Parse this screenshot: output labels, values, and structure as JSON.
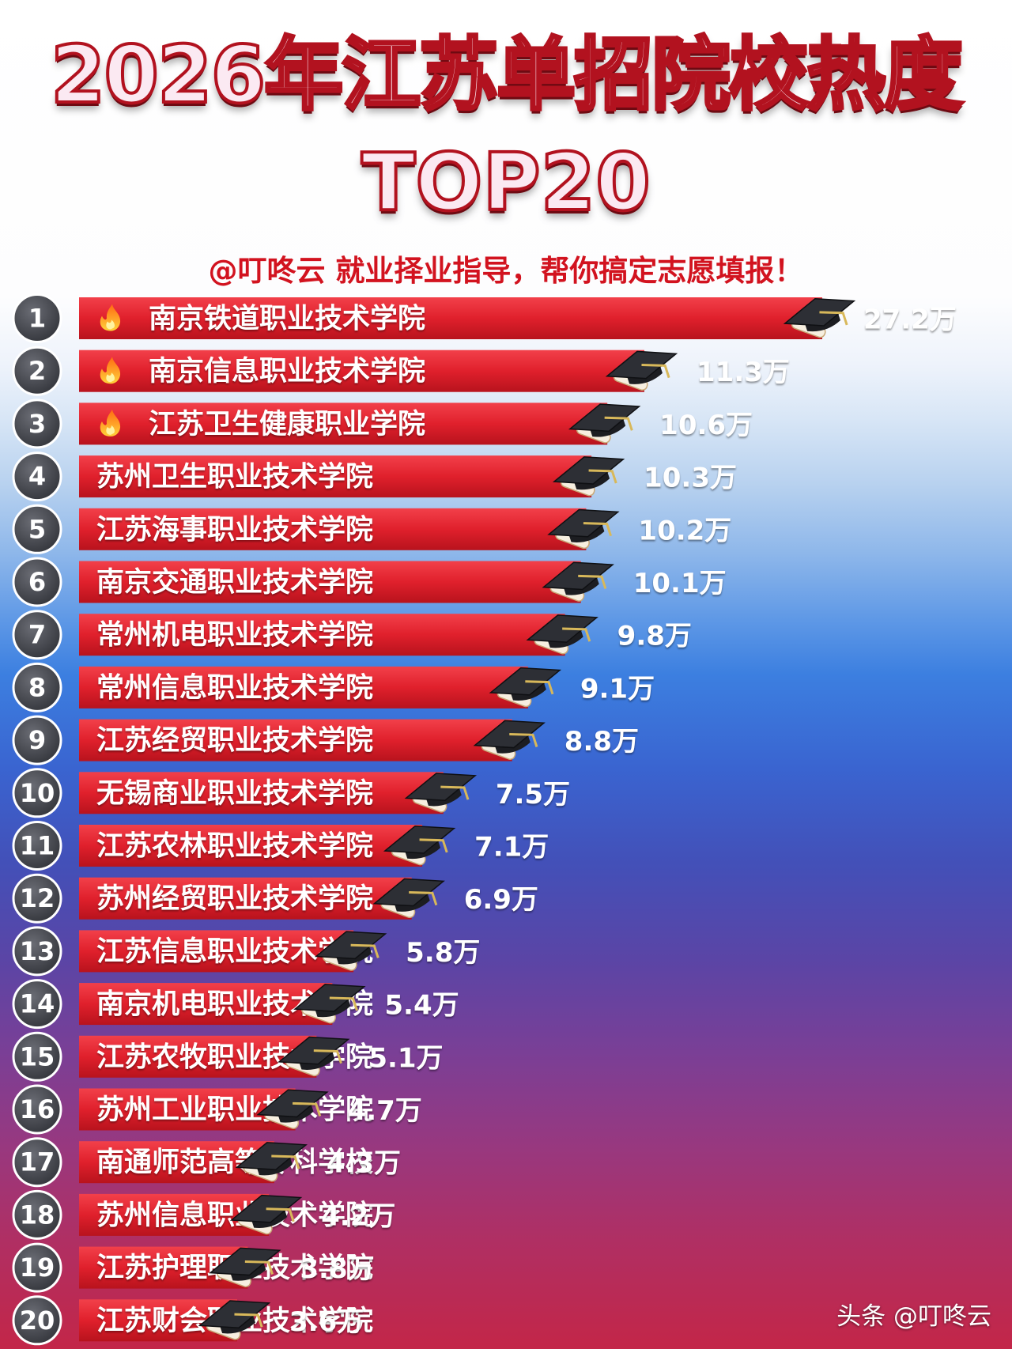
{
  "header": {
    "title": "2026年江苏单招院校热度",
    "subtitle": "TOP20",
    "tagline": "@叮咚云 就业择业指导，帮你搞定志愿填报！"
  },
  "watermark": "头条 @叮咚云",
  "colors": {
    "bar": "#e0202c",
    "rank_circle": "#4b4d55"
  },
  "icons": {
    "hot": "fire-icon",
    "bar_end": "graduation-cap-icon"
  },
  "chart_data": {
    "type": "bar",
    "orientation": "horizontal",
    "unit": "万",
    "categories": [
      "南京铁道职业技术学院",
      "南京信息职业技术学院",
      "江苏卫生健康职业学院",
      "苏州卫生职业技术学院",
      "江苏海事职业技术学院",
      "南京交通职业技术学院",
      "常州机电职业技术学院",
      "常州信息职业技术学院",
      "江苏经贸职业技术学院",
      "无锡商业职业技术学院",
      "江苏农林职业技术学院",
      "苏州经贸职业技术学院",
      "江苏信息职业技术学院",
      "南京机电职业技术学院",
      "江苏农牧职业技术学院",
      "苏州工业职业技术学院",
      "南通师范高等专科学校",
      "苏州信息职业技术学院",
      "江苏护理职业技术学院",
      "江苏财会职业技术学院"
    ],
    "ranks": [
      "1",
      "2",
      "3",
      "4",
      "5",
      "6",
      "7",
      "8",
      "9",
      "10",
      "11",
      "12",
      "13",
      "14",
      "15",
      "16",
      "17",
      "18",
      "19",
      "20"
    ],
    "values": [
      27.2,
      11.3,
      10.6,
      10.3,
      10.2,
      10.1,
      9.8,
      9.1,
      8.8,
      7.5,
      7.1,
      6.9,
      5.8,
      5.4,
      5.1,
      4.7,
      4.3,
      4.2,
      3.8,
      3.6
    ],
    "value_labels": [
      "27.2万",
      "11.3万",
      "10.6万",
      "10.3万",
      "10.2万",
      "10.1万",
      "9.8万",
      "9.1万",
      "8.8万",
      "7.5万",
      "7.1万",
      "6.9万",
      "5.8万",
      "5.4万",
      "5.1万",
      "4.7万",
      "4.3万",
      "4.2万",
      "3.8万",
      "3.6万"
    ],
    "hot_ranks": [
      1,
      2,
      3
    ]
  }
}
